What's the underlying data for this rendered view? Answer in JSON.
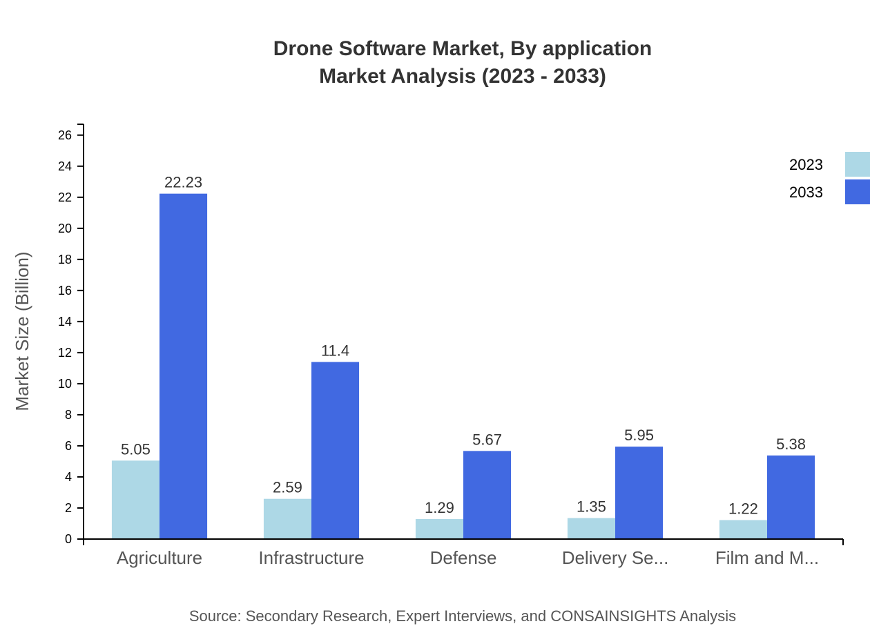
{
  "chart_data": {
    "type": "bar",
    "title": [
      "Drone Software Market, By application",
      "Market Analysis (2023 - 2033)"
    ],
    "xlabel": "",
    "ylabel": "Market Size (Billion)",
    "categories": [
      "Agriculture",
      "Infrastructure",
      "Defense",
      "Delivery Se...",
      "Film and M..."
    ],
    "series": [
      {
        "name": "2023",
        "color": "#add8e6",
        "values": [
          5.05,
          2.59,
          1.29,
          1.35,
          1.22
        ]
      },
      {
        "name": "2033",
        "color": "#4169e1",
        "values": [
          22.23,
          11.4,
          5.67,
          5.95,
          5.38
        ]
      }
    ],
    "ylim": [
      0,
      26.7
    ],
    "yticks": [
      0,
      2,
      4,
      6,
      8,
      10,
      12,
      14,
      16,
      18,
      20,
      22,
      24,
      26
    ],
    "grid": false,
    "legend": "top-right",
    "source": "Source: Secondary Research, Expert Interviews, and CONSAINSIGHTS Analysis"
  }
}
